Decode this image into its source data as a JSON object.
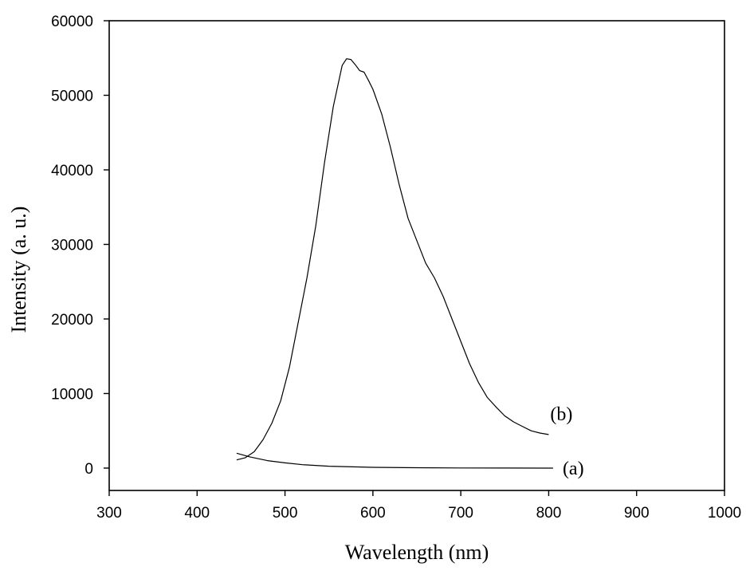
{
  "chart_data": {
    "type": "line",
    "title": "",
    "xlabel": "Wavelength (nm)",
    "ylabel": "Intensity (a. u.)",
    "xlim": [
      300,
      1000
    ],
    "ylim": [
      -3000,
      60000
    ],
    "x_ticks": [
      300,
      400,
      500,
      600,
      700,
      800,
      900,
      1000
    ],
    "y_ticks": [
      0,
      10000,
      20000,
      30000,
      40000,
      50000,
      60000
    ],
    "grid": false,
    "series": [
      {
        "name": "(a)",
        "x": [
          445,
          460,
          480,
          500,
          520,
          550,
          600,
          650,
          700,
          750,
          800,
          805
        ],
        "y": [
          2000,
          1500,
          1000,
          700,
          450,
          250,
          100,
          50,
          20,
          10,
          0,
          0
        ]
      },
      {
        "name": "(b)",
        "x": [
          445,
          455,
          465,
          475,
          485,
          495,
          505,
          515,
          525,
          535,
          545,
          555,
          565,
          570,
          575,
          580,
          585,
          590,
          595,
          600,
          610,
          620,
          630,
          640,
          650,
          660,
          670,
          680,
          690,
          700,
          710,
          720,
          730,
          740,
          750,
          760,
          770,
          780,
          790,
          800
        ],
        "y": [
          1100,
          1400,
          2200,
          3800,
          6000,
          9000,
          13500,
          19500,
          25500,
          32500,
          41000,
          48500,
          54000,
          54900,
          54800,
          54100,
          53300,
          53100,
          52000,
          50800,
          47500,
          43000,
          38000,
          33500,
          30500,
          27500,
          25500,
          23000,
          20000,
          17000,
          14000,
          11500,
          9500,
          8200,
          7000,
          6200,
          5600,
          5000,
          4700,
          4500
        ]
      }
    ]
  }
}
